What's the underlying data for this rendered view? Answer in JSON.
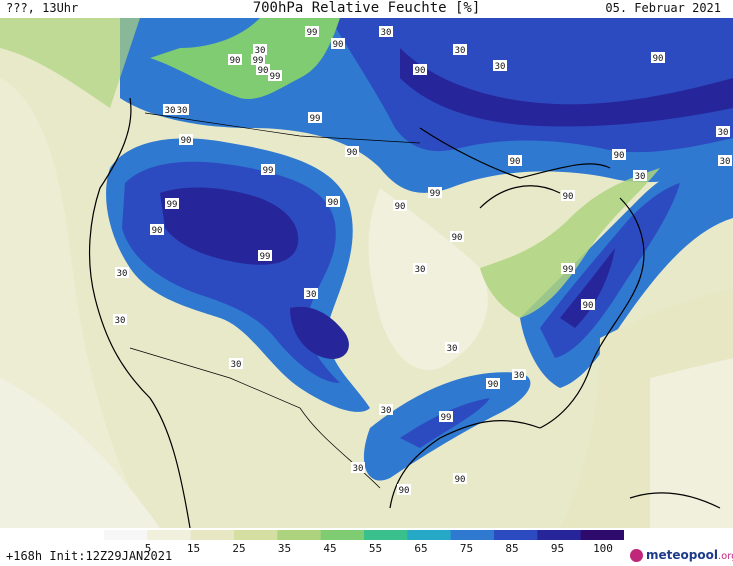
{
  "header": {
    "left": "???, 13Uhr",
    "title": "700hPa Relative Feuchte [%]",
    "right": "05. Februar 2021"
  },
  "footer": {
    "run_info": "+168h  Init:12Z29JAN2021",
    "logo_text": "meteopool",
    "logo_suffix": ".org"
  },
  "colorbar": {
    "ticks": [
      "5",
      "15",
      "25",
      "35",
      "45",
      "55",
      "65",
      "75",
      "85",
      "95",
      "100"
    ],
    "colors": [
      "#f7f7f7",
      "#f1f0dc",
      "#e7e7c4",
      "#d6dfa2",
      "#aed37f",
      "#7fcc72",
      "#39c08c",
      "#25a9c7",
      "#2f79d0",
      "#2d4bc0",
      "#27259a",
      "#2d0a6b"
    ]
  },
  "contour_labels": [
    "90",
    "99",
    "90",
    "99",
    "90",
    "90",
    "99",
    "30",
    "90",
    "30",
    "99",
    "90",
    "99",
    "90",
    "99",
    "30",
    "90",
    "90",
    "99",
    "90",
    "90",
    "90",
    "30",
    "30",
    "99",
    "90",
    "30",
    "30",
    "99",
    "90",
    "90",
    "30",
    "30",
    "30",
    "90",
    "30",
    "30",
    "30",
    "30",
    "90",
    "90",
    "30",
    "99",
    "30",
    "30",
    "30"
  ]
}
